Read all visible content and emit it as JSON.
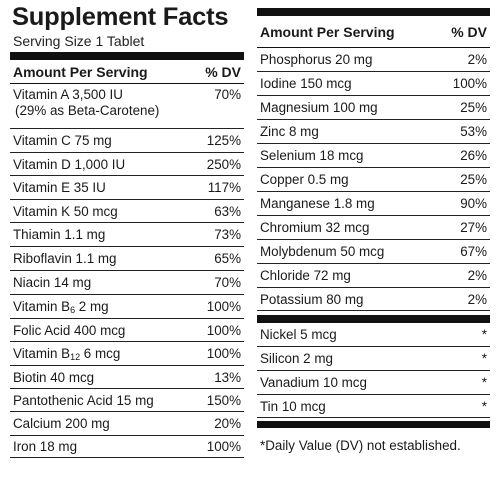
{
  "left": {
    "title": "Supplement Facts",
    "serving_size": "Serving Size 1 Tablet",
    "header": {
      "amount": "Amount Per Serving",
      "dv": "% DV"
    },
    "rows": [
      {
        "name": "Vitamin A 3,500 IU",
        "sub": "(29% as Beta-Carotene)",
        "dv": "70%"
      },
      {
        "name": "Vitamin C 75 mg",
        "dv": "125%"
      },
      {
        "name": "Vitamin D 1,000 IU",
        "dv": "250%"
      },
      {
        "name": "Vitamin E 35 IU",
        "dv": "117%"
      },
      {
        "name": "Vitamin K 50 mcg",
        "dv": "63%"
      },
      {
        "name": "Thiamin 1.1 mg",
        "dv": "73%"
      },
      {
        "name": "Riboflavin 1.1 mg",
        "dv": "65%"
      },
      {
        "name": "Niacin 14 mg",
        "dv": "70%"
      },
      {
        "name": "Vitamin B6 2 mg",
        "name_main": "Vitamin B",
        "name_sub": "6",
        "name_rest": " 2 mg",
        "dv": "100%"
      },
      {
        "name": "Folic Acid 400 mcg",
        "dv": "100%"
      },
      {
        "name": "Vitamin B12 6 mcg",
        "name_main": "Vitamin B",
        "name_sub": "12",
        "name_rest": " 6 mcg",
        "dv": "100%"
      },
      {
        "name": "Biotin 40 mcg",
        "dv": "13%"
      },
      {
        "name": "Pantothenic Acid 15 mg",
        "dv": "150%"
      },
      {
        "name": "Calcium 200 mg",
        "dv": "20%"
      },
      {
        "name": "Iron 18 mg",
        "dv": "100%"
      }
    ]
  },
  "right": {
    "header": {
      "amount": "Amount Per Serving",
      "dv": "% DV"
    },
    "rows": [
      {
        "name": "Phosphorus 20 mg",
        "dv": "2%"
      },
      {
        "name": "Iodine 150 mcg",
        "dv": "100%"
      },
      {
        "name": "Magnesium 100 mg",
        "dv": "25%"
      },
      {
        "name": "Zinc 8 mg",
        "dv": "53%"
      },
      {
        "name": "Selenium 18 mcg",
        "dv": "26%"
      },
      {
        "name": "Copper 0.5 mg",
        "dv": "25%"
      },
      {
        "name": "Manganese 1.8 mg",
        "dv": "90%"
      },
      {
        "name": "Chromium 32 mcg",
        "dv": "27%"
      },
      {
        "name": "Molybdenum 50 mcg",
        "dv": "67%"
      },
      {
        "name": "Chloride 72 mg",
        "dv": "2%"
      },
      {
        "name": "Potassium 80 mg",
        "dv": "2%"
      }
    ],
    "rows_nodv": [
      {
        "name": "Nickel 5 mcg",
        "dv": "*"
      },
      {
        "name": "Silicon 2 mg",
        "dv": "*"
      },
      {
        "name": "Vanadium 10 mcg",
        "dv": "*"
      },
      {
        "name": "Tin 10 mcg",
        "dv": "*"
      }
    ],
    "footnote": "*Daily Value (DV) not established."
  }
}
